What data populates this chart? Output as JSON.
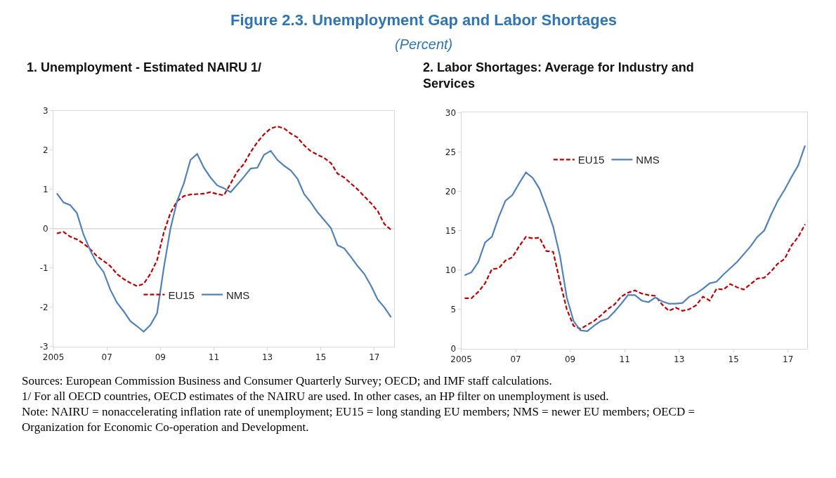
{
  "chart_data": [
    {
      "type": "line",
      "title": "1. Unemployment - Estimated NAIRU 1/",
      "annotations": [
        "Figure 2.3. Unemployment Gap and Labor Shortages",
        "(Percent)",
        "Sources: European Commission Business and Consumer Quarterly Survey; OECD; and IMF staff calculations.",
        "1/ For all OECD countries, OECD estimates of the NAIRU are used. In other cases, an HP filter on unemployment is used.",
        "Note: NAIRU = nonaccelerating inflation rate of unemployment; EU15 = long standing EU members; NMS = newer EU members; OECD = Organization for Economic Co-operation and Development."
      ],
      "x": [
        2005.125,
        2005.375,
        2005.625,
        2005.875,
        2006.125,
        2006.375,
        2006.625,
        2006.875,
        2007.125,
        2007.375,
        2007.625,
        2007.875,
        2008.125,
        2008.375,
        2008.625,
        2008.875,
        2009.125,
        2009.375,
        2009.625,
        2009.875,
        2010.125,
        2010.375,
        2010.625,
        2010.875,
        2011.125,
        2011.375,
        2011.625,
        2011.875,
        2012.125,
        2012.375,
        2012.625,
        2012.875,
        2013.125,
        2013.375,
        2013.625,
        2013.875,
        2014.125,
        2014.375,
        2014.625,
        2014.875,
        2015.125,
        2015.375,
        2015.625,
        2015.875,
        2016.125,
        2016.375,
        2016.625,
        2016.875,
        2017.125,
        2017.375,
        2017.625
      ],
      "series": [
        {
          "name": "EU15",
          "color": "#c00000",
          "line_style": "dashed",
          "values": [
            -0.12,
            -0.08,
            -0.2,
            -0.27,
            -0.38,
            -0.52,
            -0.7,
            -0.82,
            -0.95,
            -1.15,
            -1.28,
            -1.38,
            -1.46,
            -1.4,
            -1.15,
            -0.8,
            -0.1,
            0.4,
            0.7,
            0.83,
            0.87,
            0.88,
            0.89,
            0.93,
            0.88,
            0.85,
            1.15,
            1.45,
            1.65,
            1.95,
            2.2,
            2.4,
            2.55,
            2.6,
            2.55,
            2.42,
            2.32,
            2.12,
            1.97,
            1.88,
            1.8,
            1.67,
            1.4,
            1.3,
            1.15,
            1.0,
            0.82,
            0.65,
            0.45,
            0.12,
            -0.03
          ]
        },
        {
          "name": "NMS",
          "color": "#4f81bd",
          "line_style": "solid",
          "values": [
            0.9,
            0.67,
            0.6,
            0.4,
            -0.15,
            -0.55,
            -0.88,
            -1.1,
            -1.55,
            -1.88,
            -2.1,
            -2.35,
            -2.48,
            -2.62,
            -2.45,
            -2.15,
            -1.0,
            0.0,
            0.7,
            1.15,
            1.75,
            1.9,
            1.55,
            1.3,
            1.1,
            1.03,
            0.93,
            1.12,
            1.32,
            1.53,
            1.55,
            1.88,
            1.98,
            1.75,
            1.6,
            1.48,
            1.27,
            0.88,
            0.67,
            0.42,
            0.22,
            0.02,
            -0.42,
            -0.5,
            -0.72,
            -0.95,
            -1.15,
            -1.45,
            -1.8,
            -2.0,
            -2.25
          ]
        }
      ],
      "xlim": [
        2005,
        2017.75
      ],
      "xticks": [
        2005,
        {
          "value": 2007,
          "label": "07"
        },
        {
          "value": 2009,
          "label": "09"
        },
        {
          "value": 2011,
          "label": "11"
        },
        {
          "value": 2013,
          "label": "13"
        },
        {
          "value": 2015,
          "label": "15"
        },
        {
          "value": 2017,
          "label": "17"
        }
      ],
      "ylim": [
        -3,
        3
      ],
      "yticks": [
        -3,
        -2,
        -1,
        0,
        1,
        2,
        3
      ],
      "ref_lines": [
        {
          "axis": "y",
          "value": 0,
          "color": "#d9d9d9"
        }
      ],
      "grid": false,
      "legend": "bottom"
    },
    {
      "type": "line",
      "title": "2. Labor Shortages: Average for Industry and Services",
      "x": [
        2005.125,
        2005.375,
        2005.625,
        2005.875,
        2006.125,
        2006.375,
        2006.625,
        2006.875,
        2007.125,
        2007.375,
        2007.625,
        2007.875,
        2008.125,
        2008.375,
        2008.625,
        2008.875,
        2009.125,
        2009.375,
        2009.625,
        2009.875,
        2010.125,
        2010.375,
        2010.625,
        2010.875,
        2011.125,
        2011.375,
        2011.625,
        2011.875,
        2012.125,
        2012.375,
        2012.625,
        2012.875,
        2013.125,
        2013.375,
        2013.625,
        2013.875,
        2014.125,
        2014.375,
        2014.625,
        2014.875,
        2015.125,
        2015.375,
        2015.625,
        2015.875,
        2016.125,
        2016.375,
        2016.625,
        2016.875,
        2017.125,
        2017.375,
        2017.625
      ],
      "series": [
        {
          "name": "EU15",
          "color": "#c00000",
          "line_style": "dashed",
          "values": [
            6.4,
            6.4,
            7.2,
            8.3,
            10.1,
            10.2,
            11.2,
            11.6,
            13.0,
            14.2,
            14.0,
            14.1,
            12.4,
            12.3,
            8.5,
            5.0,
            2.9,
            2.5,
            3.0,
            3.5,
            4.2,
            5.0,
            5.6,
            6.6,
            7.1,
            7.4,
            7.0,
            6.8,
            6.7,
            5.6,
            4.8,
            5.2,
            4.8,
            5.0,
            5.5,
            6.6,
            6.1,
            7.6,
            7.5,
            8.2,
            7.8,
            7.5,
            8.2,
            8.9,
            9.0,
            9.8,
            10.8,
            11.4,
            13.1,
            14.2,
            15.8
          ]
        },
        {
          "name": "NMS",
          "color": "#4f81bd",
          "line_style": "solid",
          "values": [
            9.3,
            9.7,
            11.0,
            13.5,
            14.2,
            16.7,
            18.8,
            19.5,
            21.0,
            22.4,
            21.7,
            20.3,
            18.0,
            15.5,
            11.8,
            6.5,
            3.5,
            2.3,
            2.2,
            2.9,
            3.5,
            3.8,
            4.7,
            5.7,
            6.8,
            6.8,
            6.1,
            5.9,
            6.5,
            6.0,
            5.7,
            5.7,
            5.8,
            6.6,
            7.0,
            7.6,
            8.3,
            8.5,
            9.4,
            10.2,
            11.0,
            12.0,
            13.0,
            14.2,
            15.0,
            17.0,
            18.8,
            20.2,
            21.8,
            23.3,
            25.8
          ]
        }
      ],
      "xlim": [
        2005,
        2017.7
      ],
      "xticks": [
        2005,
        {
          "value": 2007,
          "label": "07"
        },
        {
          "value": 2009,
          "label": "09"
        },
        {
          "value": 2011,
          "label": "11"
        },
        {
          "value": 2013,
          "label": "13"
        },
        {
          "value": 2015,
          "label": "15"
        },
        {
          "value": 2017,
          "label": "17"
        }
      ],
      "ylim": [
        0,
        30
      ],
      "yticks": [
        0,
        5,
        10,
        15,
        20,
        25,
        30
      ],
      "grid": false,
      "legend": "top"
    }
  ]
}
